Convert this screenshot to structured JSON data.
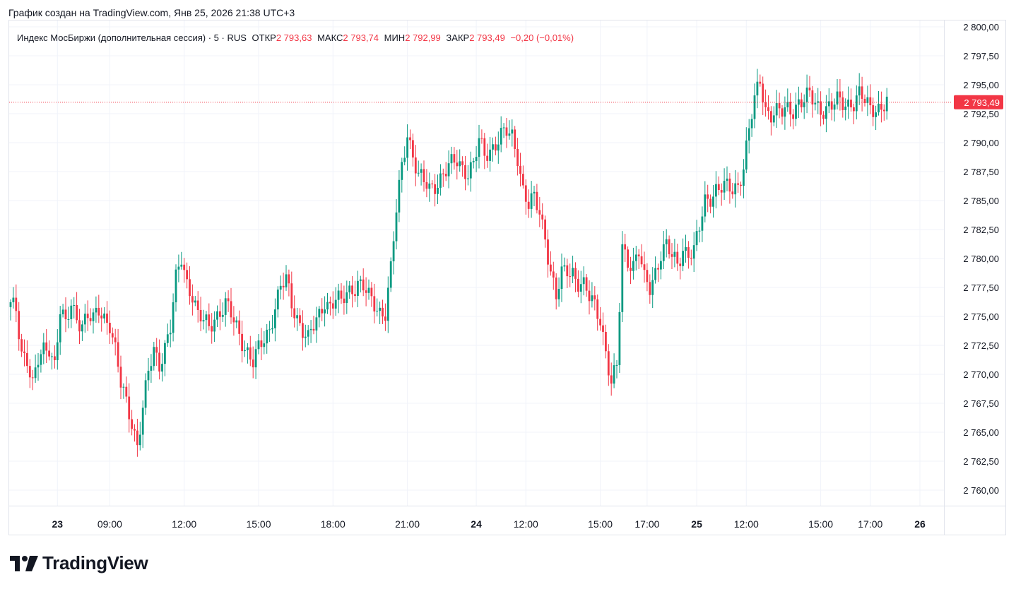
{
  "caption": "График создан на TradingView.com, Янв 25, 2026 21:38 UTC+3",
  "legend": {
    "symbol": "Индекс МосБиржи (дополнительная сессия) · 5 · RUS",
    "open_label": "ОТКР",
    "open_value": "2 793,63",
    "high_label": "МАКС",
    "high_value": "2 793,74",
    "low_label": "МИН",
    "low_value": "2 792,99",
    "close_label": "ЗАКР",
    "close_value": "2 793,49",
    "change": "−0,20 (−0,01%)"
  },
  "colors": {
    "up": "#089981",
    "down": "#f23645",
    "grid": "#f0f3fa",
    "text": "#131722",
    "price_line": "#f23645"
  },
  "brand": {
    "name": "TradingView",
    "icon": "tradingview-logo-icon"
  },
  "chart_data": {
    "type": "candlestick",
    "title": "Индекс МосБиржи (дополнительная сессия)",
    "interval": "5",
    "ylim": [
      2757.5,
      2800
    ],
    "y_ticks": [
      "2 800,00",
      "2 797,50",
      "2 795,00",
      "2 792,50",
      "2 790,00",
      "2 787,50",
      "2 785,00",
      "2 782,50",
      "2 780,00",
      "2 777,50",
      "2 775,00",
      "2 772,50",
      "2 770,00",
      "2 767,50",
      "2 765,00",
      "2 762,50",
      "2 760,00"
    ],
    "y_tick_values": [
      2800,
      2797.5,
      2795,
      2792.5,
      2790,
      2787.5,
      2785,
      2782.5,
      2780,
      2777.5,
      2775,
      2772.5,
      2770,
      2767.5,
      2765,
      2762.5,
      2760
    ],
    "x_ticks": [
      {
        "label": "23",
        "idx": 17,
        "bold": true
      },
      {
        "label": "09:00",
        "idx": 36
      },
      {
        "label": "12:00",
        "idx": 63
      },
      {
        "label": "15:00",
        "idx": 90
      },
      {
        "label": "18:00",
        "idx": 117
      },
      {
        "label": "21:00",
        "idx": 144
      },
      {
        "label": "24",
        "idx": 169,
        "bold": true
      },
      {
        "label": "12:00",
        "idx": 187
      },
      {
        "label": "15:00",
        "idx": 214
      },
      {
        "label": "17:00",
        "idx": 231
      },
      {
        "label": "25",
        "idx": 249,
        "bold": true
      },
      {
        "label": "12:00",
        "idx": 267
      },
      {
        "label": "15:00",
        "idx": 294
      },
      {
        "label": "17:00",
        "idx": 312
      },
      {
        "label": "26",
        "idx": 330,
        "bold": true
      }
    ],
    "last_price": 2793.49,
    "last_price_label": "2 793,49",
    "anchors": [
      [
        0,
        2775.8
      ],
      [
        2,
        2775.5
      ],
      [
        4,
        2772
      ],
      [
        6,
        2771.5
      ],
      [
        8,
        2769
      ],
      [
        10,
        2771
      ],
      [
        12,
        2772
      ],
      [
        14,
        2772.5
      ],
      [
        16,
        2771
      ],
      [
        18,
        2775.5
      ],
      [
        20,
        2774
      ],
      [
        22,
        2776
      ],
      [
        24,
        2775
      ],
      [
        26,
        2774.5
      ],
      [
        28,
        2775
      ],
      [
        30,
        2774.5
      ],
      [
        32,
        2775.5
      ],
      [
        34,
        2775
      ],
      [
        36,
        2774.5
      ],
      [
        38,
        2772
      ],
      [
        40,
        2769
      ],
      [
        42,
        2767.5
      ],
      [
        44,
        2766
      ],
      [
        46,
        2764
      ],
      [
        48,
        2767
      ],
      [
        50,
        2770
      ],
      [
        52,
        2772
      ],
      [
        54,
        2771
      ],
      [
        56,
        2772.5
      ],
      [
        58,
        2774
      ],
      [
        60,
        2778
      ],
      [
        62,
        2780
      ],
      [
        64,
        2778
      ],
      [
        66,
        2777
      ],
      [
        68,
        2775
      ],
      [
        70,
        2774.5
      ],
      [
        72,
        2774
      ],
      [
        74,
        2775
      ],
      [
        76,
        2775.5
      ],
      [
        78,
        2776
      ],
      [
        80,
        2775
      ],
      [
        82,
        2774
      ],
      [
        84,
        2773
      ],
      [
        86,
        2772
      ],
      [
        88,
        2771
      ],
      [
        90,
        2772
      ],
      [
        92,
        2773
      ],
      [
        94,
        2774
      ],
      [
        96,
        2776
      ],
      [
        98,
        2777.5
      ],
      [
        100,
        2778
      ],
      [
        102,
        2776
      ],
      [
        104,
        2775
      ],
      [
        106,
        2774
      ],
      [
        108,
        2773
      ],
      [
        110,
        2774
      ],
      [
        112,
        2775
      ],
      [
        114,
        2776.5
      ],
      [
        116,
        2776
      ],
      [
        118,
        2776.5
      ],
      [
        120,
        2776
      ],
      [
        122,
        2777
      ],
      [
        124,
        2777.5
      ],
      [
        126,
        2778
      ],
      [
        128,
        2777.5
      ],
      [
        130,
        2776.5
      ],
      [
        132,
        2776
      ],
      [
        134,
        2775.5
      ],
      [
        136,
        2775.5
      ],
      [
        138,
        2779
      ],
      [
        140,
        2784
      ],
      [
        142,
        2788
      ],
      [
        144,
        2791
      ],
      [
        146,
        2789
      ],
      [
        148,
        2787
      ],
      [
        150,
        2786.5
      ],
      [
        152,
        2786
      ],
      [
        154,
        2786.5
      ],
      [
        156,
        2787
      ],
      [
        158,
        2787.5
      ],
      [
        160,
        2788
      ],
      [
        162,
        2788.5
      ],
      [
        164,
        2788
      ],
      [
        166,
        2787.5
      ],
      [
        168,
        2788
      ],
      [
        170,
        2790
      ],
      [
        172,
        2789
      ],
      [
        174,
        2789.5
      ],
      [
        176,
        2790
      ],
      [
        178,
        2790.5
      ],
      [
        180,
        2790.8
      ],
      [
        182,
        2790.5
      ],
      [
        184,
        2789
      ],
      [
        186,
        2786
      ],
      [
        188,
        2784.5
      ],
      [
        190,
        2785
      ],
      [
        192,
        2784
      ],
      [
        194,
        2782
      ],
      [
        196,
        2779
      ],
      [
        198,
        2776.5
      ],
      [
        200,
        2778.5
      ],
      [
        202,
        2779
      ],
      [
        204,
        2779
      ],
      [
        206,
        2778
      ],
      [
        208,
        2777.5
      ],
      [
        210,
        2776.5
      ],
      [
        212,
        2776
      ],
      [
        214,
        2775
      ],
      [
        216,
        2772
      ],
      [
        218,
        2769
      ],
      [
        220,
        2770.5
      ],
      [
        222,
        2781
      ],
      [
        224,
        2780
      ],
      [
        226,
        2779.5
      ],
      [
        228,
        2780.5
      ],
      [
        230,
        2778
      ],
      [
        232,
        2777.5
      ],
      [
        234,
        2779
      ],
      [
        236,
        2780.5
      ],
      [
        238,
        2781
      ],
      [
        240,
        2780
      ],
      [
        242,
        2779.5
      ],
      [
        244,
        2781
      ],
      [
        246,
        2780.5
      ],
      [
        248,
        2780.5
      ],
      [
        250,
        2782.5
      ],
      [
        252,
        2785
      ],
      [
        254,
        2785.5
      ],
      [
        256,
        2786
      ],
      [
        258,
        2786
      ],
      [
        260,
        2786
      ],
      [
        262,
        2786
      ],
      [
        264,
        2786.5
      ],
      [
        266,
        2788
      ],
      [
        268,
        2791
      ],
      [
        270,
        2793.5
      ],
      [
        272,
        2795.5
      ],
      [
        274,
        2793
      ],
      [
        276,
        2792.5
      ],
      [
        278,
        2792.5
      ],
      [
        280,
        2792.5
      ],
      [
        282,
        2793
      ],
      [
        284,
        2793
      ],
      [
        286,
        2793.5
      ],
      [
        288,
        2793.5
      ],
      [
        290,
        2794
      ],
      [
        292,
        2793.5
      ],
      [
        294,
        2793
      ],
      [
        296,
        2793
      ],
      [
        298,
        2793
      ],
      [
        300,
        2793.5
      ],
      [
        302,
        2793.5
      ],
      [
        304,
        2793.5
      ],
      [
        306,
        2793.5
      ],
      [
        308,
        2794
      ],
      [
        310,
        2793.5
      ],
      [
        312,
        2793
      ],
      [
        314,
        2793.2
      ],
      [
        316,
        2793
      ],
      [
        318,
        2793.5
      ]
    ]
  }
}
